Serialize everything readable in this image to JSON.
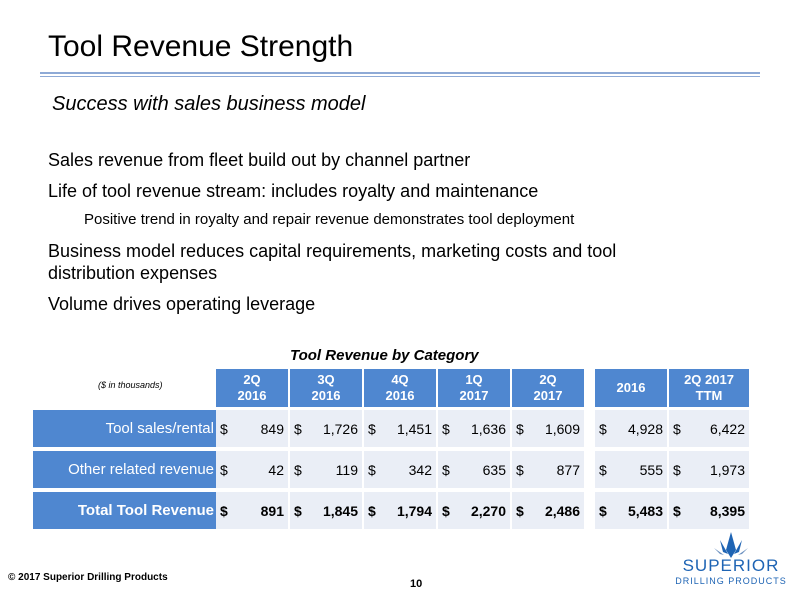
{
  "title": "Tool Revenue Strength",
  "subtitle": "Success with sales business model",
  "bullets": {
    "b1": "Sales revenue from fleet build out by channel partner",
    "b2": "Life of tool revenue stream: includes royalty and maintenance",
    "b2_sub": "Positive trend in royalty and repair revenue demonstrates tool deployment",
    "b3_line1": "Business model reduces capital requirements, marketing costs and tool",
    "b3_line2": "distribution expenses",
    "b4": "Volume drives operating leverage"
  },
  "table": {
    "title": "Tool Revenue by Category",
    "note": "($ in thousands)",
    "headers": [
      {
        "l1": "2Q",
        "l2": "2016"
      },
      {
        "l1": "3Q",
        "l2": "2016"
      },
      {
        "l1": "4Q",
        "l2": "2016"
      },
      {
        "l1": "1Q",
        "l2": "2017"
      },
      {
        "l1": "2Q",
        "l2": "2017"
      },
      {
        "l1": "2016",
        "l2": ""
      },
      {
        "l1": "2Q 2017",
        "l2": "TTM"
      }
    ],
    "rows": [
      {
        "label": "Tool sales/rental",
        "values": [
          "849",
          "1,726",
          "1,451",
          "1,636",
          "1,609",
          "4,928",
          "6,422"
        ]
      },
      {
        "label": "Other related revenue",
        "values": [
          "42",
          "119",
          "342",
          "635",
          "877",
          "555",
          "1,973"
        ]
      },
      {
        "label": "Total Tool Revenue",
        "values": [
          "891",
          "1,845",
          "1,794",
          "2,270",
          "2,486",
          "5,483",
          "8,395"
        ]
      }
    ],
    "currency": "$"
  },
  "footer": {
    "copyright": "© 2017 Superior Drilling Products",
    "page": "10"
  },
  "logo": {
    "name": "SUPERIOR",
    "tag": "DRILLING PRODUCTS",
    "color": "#1e64b4"
  },
  "colors": {
    "header_blue": "#4f87d0",
    "cell_bg": "#eaeef6",
    "rule": "#8eaad6"
  }
}
